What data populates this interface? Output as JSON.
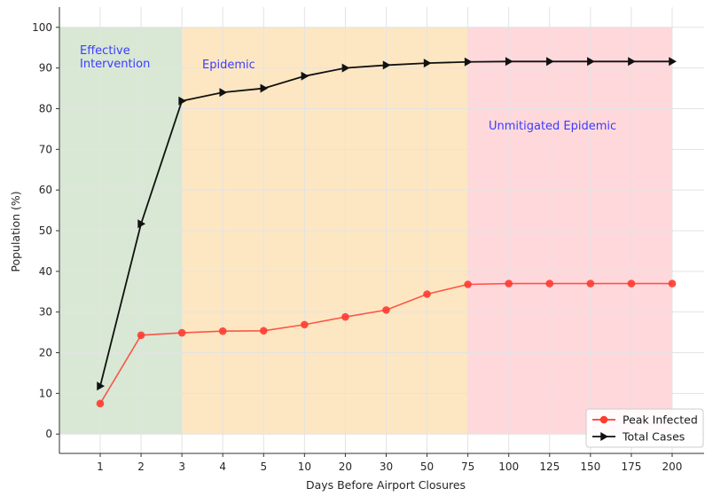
{
  "chart_data": {
    "type": "line",
    "xlabel": "Days Before Airport Closures",
    "ylabel": "Population (%)",
    "categories": [
      "1",
      "2",
      "3",
      "4",
      "5",
      "10",
      "20",
      "30",
      "50",
      "75",
      "100",
      "125",
      "150",
      "175",
      "200"
    ],
    "ylim": [
      -5,
      105
    ],
    "yticks": [
      0,
      10,
      20,
      30,
      40,
      50,
      60,
      70,
      80,
      90,
      100
    ],
    "grid": true,
    "legend_position": "bottom-right",
    "series": [
      {
        "name": "Peak Infected",
        "color": "#ff3b30",
        "marker": "circle",
        "values": [
          7.5,
          24.3,
          24.9,
          25.3,
          25.4,
          26.9,
          28.8,
          30.5,
          34.4,
          36.8,
          37.0,
          37.0,
          37.0,
          37.0,
          37.0
        ]
      },
      {
        "name": "Total Cases",
        "color": "#111111",
        "marker": "triangle-right",
        "values": [
          11.8,
          51.7,
          81.9,
          84.0,
          85.0,
          88.0,
          90.0,
          90.7,
          91.2,
          91.5,
          91.6,
          91.6,
          91.6,
          91.6,
          91.6
        ]
      }
    ],
    "regions": [
      {
        "label": "Effective\nIntervention",
        "from_index": 0,
        "to_index": 2,
        "color": "#d8e8d4"
      },
      {
        "label": "Epidemic",
        "from_index": 2,
        "to_index": 9,
        "color": "#fde7c2"
      },
      {
        "label": "Unmitigated Epidemic",
        "from_index": 9,
        "to_index": 14,
        "color": "#ffd8dc"
      }
    ]
  }
}
